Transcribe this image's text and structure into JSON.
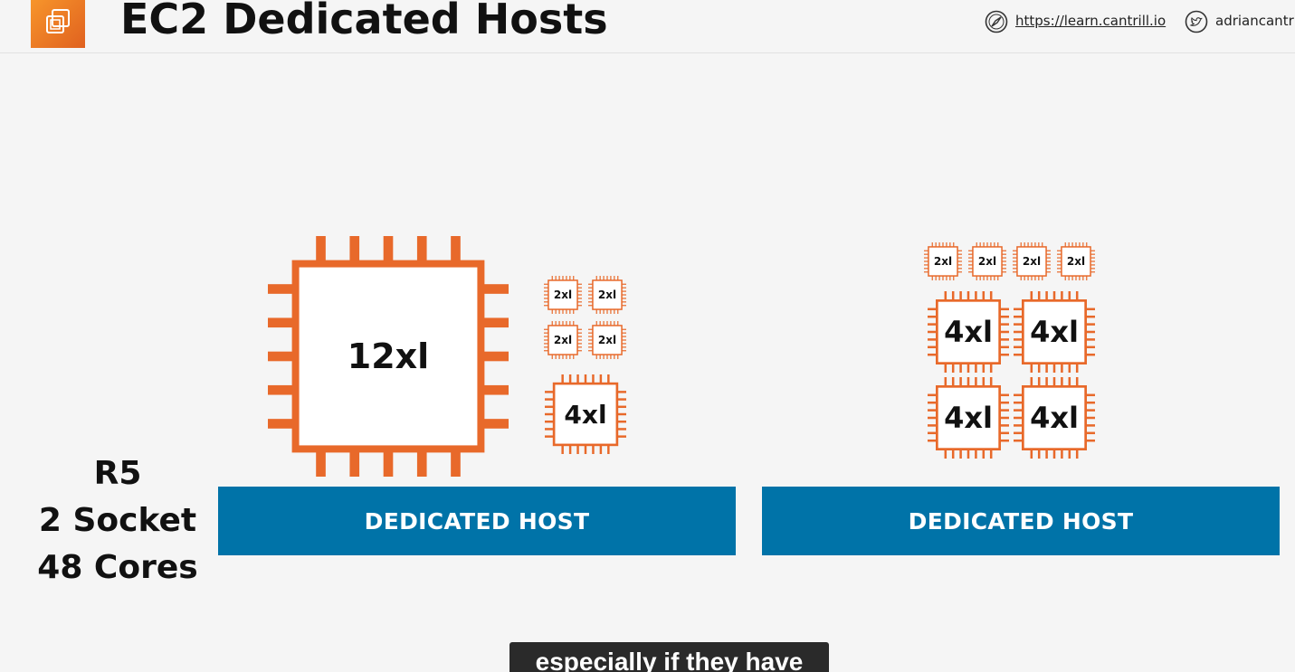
{
  "header": {
    "title": "EC2 Dedicated Hosts",
    "url_text": "https://learn.cantrill.io",
    "twitter_handle": "adriancantrill",
    "icons": {
      "link": "compass-icon",
      "twitter": "twitter-icon",
      "logo": "ec2-instances-icon"
    }
  },
  "spec": {
    "line1": "R5",
    "line2": "2 Socket",
    "line3": "48 Cores"
  },
  "hosts": {
    "left": {
      "label": "DEDICATED HOST",
      "instances": [
        "12xl",
        "2xl",
        "2xl",
        "2xl",
        "2xl",
        "4xl"
      ]
    },
    "right": {
      "label": "DEDICATED HOST",
      "instances": [
        "2xl",
        "2xl",
        "2xl",
        "2xl",
        "4xl",
        "4xl",
        "4xl",
        "4xl"
      ]
    }
  },
  "caption": "especially if they have",
  "colors": {
    "accent": "#e8692a",
    "host_bar": "#0073a8",
    "logo": "#f08124"
  }
}
